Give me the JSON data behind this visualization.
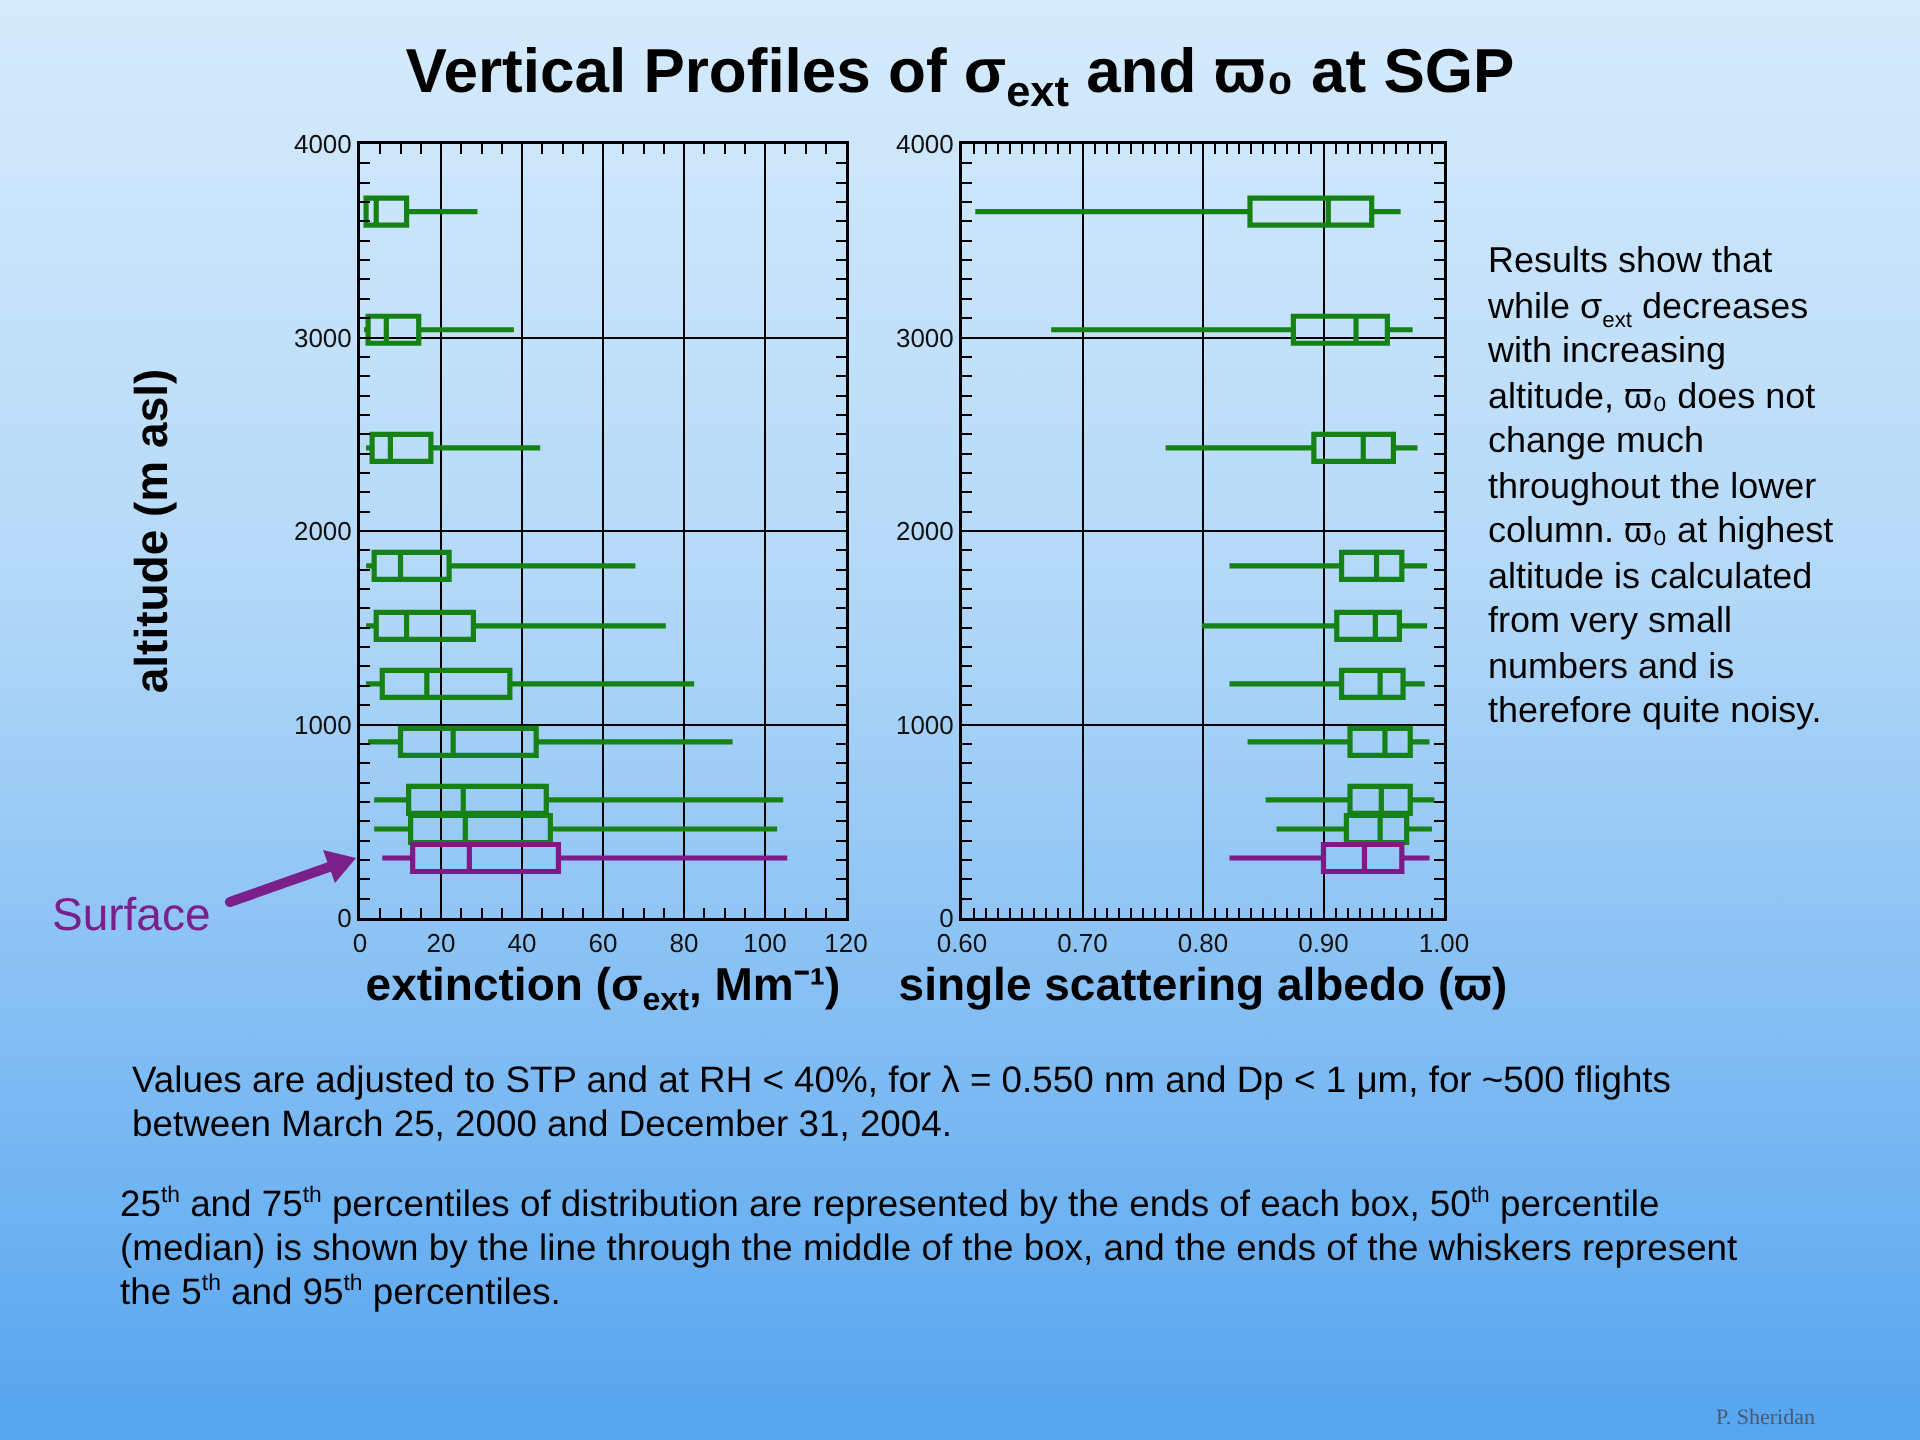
{
  "chart_data": [
    {
      "type": "box",
      "orientation": "horizontal",
      "title": "Vertical Profiles of σ$_{ext}$ and ϖ₀ at SGP",
      "xlabel": "extinction (σ$_{ext}$, Mm⁻¹)",
      "ylabel": "altitude (m asl)",
      "grid": true,
      "xlim": [
        0,
        120
      ],
      "xticks": [
        0,
        {
          "value": 5,
          "label": null
        },
        {
          "value": 10,
          "label": null
        },
        {
          "value": 15,
          "label": null
        },
        20,
        {
          "value": 25,
          "label": null
        },
        {
          "value": 30,
          "label": null
        },
        {
          "value": 35,
          "label": null
        },
        40,
        {
          "value": 45,
          "label": null
        },
        {
          "value": 50,
          "label": null
        },
        {
          "value": 55,
          "label": null
        },
        60,
        {
          "value": 65,
          "label": null
        },
        {
          "value": 70,
          "label": null
        },
        {
          "value": 75,
          "label": null
        },
        80,
        {
          "value": 85,
          "label": null
        },
        {
          "value": 90,
          "label": null
        },
        {
          "value": 95,
          "label": null
        },
        100,
        {
          "value": 105,
          "label": null
        },
        {
          "value": 110,
          "label": null
        },
        {
          "value": 115,
          "label": null
        },
        120
      ],
      "ylim": [
        0,
        4000
      ],
      "yticks": [
        0,
        {
          "value": 100,
          "label": null
        },
        {
          "value": 200,
          "label": null
        },
        {
          "value": 300,
          "label": null
        },
        {
          "value": 400,
          "label": null
        },
        {
          "value": 500,
          "label": null
        },
        {
          "value": 600,
          "label": null
        },
        {
          "value": 700,
          "label": null
        },
        {
          "value": 800,
          "label": null
        },
        {
          "value": 900,
          "label": null
        },
        1000,
        {
          "value": 1100,
          "label": null
        },
        {
          "value": 1200,
          "label": null
        },
        {
          "value": 1300,
          "label": null
        },
        {
          "value": 1400,
          "label": null
        },
        {
          "value": 1500,
          "label": null
        },
        {
          "value": 1600,
          "label": null
        },
        {
          "value": 1700,
          "label": null
        },
        {
          "value": 1800,
          "label": null
        },
        {
          "value": 1900,
          "label": null
        },
        2000,
        {
          "value": 2100,
          "label": null
        },
        {
          "value": 2200,
          "label": null
        },
        {
          "value": 2300,
          "label": null
        },
        {
          "value": 2400,
          "label": null
        },
        {
          "value": 2500,
          "label": null
        },
        {
          "value": 2600,
          "label": null
        },
        {
          "value": 2700,
          "label": null
        },
        {
          "value": 2800,
          "label": null
        },
        {
          "value": 2900,
          "label": null
        },
        3000,
        {
          "value": 3100,
          "label": null
        },
        {
          "value": 3200,
          "label": null
        },
        {
          "value": 3300,
          "label": null
        },
        {
          "value": 3400,
          "label": null
        },
        {
          "value": 3500,
          "label": null
        },
        {
          "value": 3600,
          "label": null
        },
        {
          "value": 3700,
          "label": null
        },
        {
          "value": 3800,
          "label": null
        },
        {
          "value": 3900,
          "label": null
        },
        4000
      ],
      "series": [
        {
          "color": "#168216",
          "x": [
            3650,
            3040,
            2430,
            1820,
            1510,
            1210,
            910,
            610,
            460
          ],
          "boxes": [
            {
              "low": 1,
              "q1": 1.5,
              "median": 4,
              "q3": 11.5,
              "high": 29
            },
            {
              "low": 1,
              "q1": 2,
              "median": 6.5,
              "q3": 14.5,
              "high": 38
            },
            {
              "low": 1.5,
              "q1": 3,
              "median": 7.5,
              "q3": 17.5,
              "high": 44.5
            },
            {
              "low": 1.5,
              "q1": 3.5,
              "median": 10,
              "q3": 22,
              "high": 68
            },
            {
              "low": 1.5,
              "q1": 4,
              "median": 11.5,
              "q3": 28,
              "high": 75.5
            },
            {
              "low": 1.5,
              "q1": 5.5,
              "median": 16.5,
              "q3": 37,
              "high": 82.5
            },
            {
              "low": 2,
              "q1": 10,
              "median": 23,
              "q3": 43.5,
              "high": 92
            },
            {
              "low": 3.5,
              "q1": 12,
              "median": 25.5,
              "q3": 46,
              "high": 104.5
            },
            {
              "low": 3.5,
              "q1": 12.5,
              "median": 26,
              "q3": 47,
              "high": 103
            }
          ]
        },
        {
          "color": "#7d1a88",
          "x": [
            310
          ],
          "boxes": [
            {
              "low": 5.5,
              "q1": 13,
              "median": 27,
              "q3": 49,
              "high": 105.5
            }
          ]
        }
      ],
      "annotations": [
        "Surface",
        "Values are adjusted to STP and at RH < 40%, for λ = 0.550 nm and Dp < 1 μm, for ~500 flights between March 25, 2000 and December 31, 2004.",
        "25$^{th}$ and 75$^{th}$ percentiles of distribution are represented by the ends of each box, 50$^{th}$ percentile (median) is shown by the line through the middle of the box, and the ends of the whiskers represent the 5$^{th}$ and 95$^{th}$ percentiles."
      ]
    },
    {
      "type": "box",
      "orientation": "horizontal",
      "xlabel": "single scattering albedo (ϖ)",
      "grid": true,
      "xlim": [
        0.6,
        1.0
      ],
      "xticks": [
        {
          "value": 0.6,
          "label": "0.60"
        },
        {
          "value": 0.61,
          "label": null
        },
        {
          "value": 0.62,
          "label": null
        },
        {
          "value": 0.63,
          "label": null
        },
        {
          "value": 0.64,
          "label": null
        },
        {
          "value": 0.65,
          "label": null
        },
        {
          "value": 0.66,
          "label": null
        },
        {
          "value": 0.67,
          "label": null
        },
        {
          "value": 0.68,
          "label": null
        },
        {
          "value": 0.69,
          "label": null
        },
        {
          "value": 0.7,
          "label": "0.70"
        },
        {
          "value": 0.71,
          "label": null
        },
        {
          "value": 0.72,
          "label": null
        },
        {
          "value": 0.73,
          "label": null
        },
        {
          "value": 0.74,
          "label": null
        },
        {
          "value": 0.75,
          "label": null
        },
        {
          "value": 0.76,
          "label": null
        },
        {
          "value": 0.77,
          "label": null
        },
        {
          "value": 0.78,
          "label": null
        },
        {
          "value": 0.79,
          "label": null
        },
        {
          "value": 0.8,
          "label": "0.80"
        },
        {
          "value": 0.81,
          "label": null
        },
        {
          "value": 0.82,
          "label": null
        },
        {
          "value": 0.83,
          "label": null
        },
        {
          "value": 0.84,
          "label": null
        },
        {
          "value": 0.85,
          "label": null
        },
        {
          "value": 0.86,
          "label": null
        },
        {
          "value": 0.87,
          "label": null
        },
        {
          "value": 0.88,
          "label": null
        },
        {
          "value": 0.89,
          "label": null
        },
        {
          "value": 0.9,
          "label": "0.90"
        },
        {
          "value": 0.91,
          "label": null
        },
        {
          "value": 0.92,
          "label": null
        },
        {
          "value": 0.93,
          "label": null
        },
        {
          "value": 0.94,
          "label": null
        },
        {
          "value": 0.95,
          "label": null
        },
        {
          "value": 0.96,
          "label": null
        },
        {
          "value": 0.97,
          "label": null
        },
        {
          "value": 0.98,
          "label": null
        },
        {
          "value": 0.99,
          "label": null
        },
        {
          "value": 1.0,
          "label": "1.00"
        }
      ],
      "ylim": [
        0,
        4000
      ],
      "yticks": [
        0,
        {
          "value": 100,
          "label": null
        },
        {
          "value": 200,
          "label": null
        },
        {
          "value": 300,
          "label": null
        },
        {
          "value": 400,
          "label": null
        },
        {
          "value": 500,
          "label": null
        },
        {
          "value": 600,
          "label": null
        },
        {
          "value": 700,
          "label": null
        },
        {
          "value": 800,
          "label": null
        },
        {
          "value": 900,
          "label": null
        },
        1000,
        {
          "value": 1100,
          "label": null
        },
        {
          "value": 1200,
          "label": null
        },
        {
          "value": 1300,
          "label": null
        },
        {
          "value": 1400,
          "label": null
        },
        {
          "value": 1500,
          "label": null
        },
        {
          "value": 1600,
          "label": null
        },
        {
          "value": 1700,
          "label": null
        },
        {
          "value": 1800,
          "label": null
        },
        {
          "value": 1900,
          "label": null
        },
        2000,
        {
          "value": 2100,
          "label": null
        },
        {
          "value": 2200,
          "label": null
        },
        {
          "value": 2300,
          "label": null
        },
        {
          "value": 2400,
          "label": null
        },
        {
          "value": 2500,
          "label": null
        },
        {
          "value": 2600,
          "label": null
        },
        {
          "value": 2700,
          "label": null
        },
        {
          "value": 2800,
          "label": null
        },
        {
          "value": 2900,
          "label": null
        },
        3000,
        {
          "value": 3100,
          "label": null
        },
        {
          "value": 3200,
          "label": null
        },
        {
          "value": 3300,
          "label": null
        },
        {
          "value": 3400,
          "label": null
        },
        {
          "value": 3500,
          "label": null
        },
        {
          "value": 3600,
          "label": null
        },
        {
          "value": 3700,
          "label": null
        },
        {
          "value": 3800,
          "label": null
        },
        {
          "value": 3900,
          "label": null
        },
        4000
      ],
      "series": [
        {
          "color": "#168216",
          "x": [
            3650,
            3040,
            2430,
            1820,
            1510,
            1210,
            910,
            610,
            460
          ],
          "boxes": [
            {
              "low": 0.611,
              "q1": 0.839,
              "median": 0.904,
              "q3": 0.94,
              "high": 0.964
            },
            {
              "low": 0.674,
              "q1": 0.875,
              "median": 0.927,
              "q3": 0.953,
              "high": 0.974
            },
            {
              "low": 0.769,
              "q1": 0.892,
              "median": 0.933,
              "q3": 0.958,
              "high": 0.978
            },
            {
              "low": 0.822,
              "q1": 0.915,
              "median": 0.944,
              "q3": 0.965,
              "high": 0.986
            },
            {
              "low": 0.799,
              "q1": 0.911,
              "median": 0.943,
              "q3": 0.963,
              "high": 0.986
            },
            {
              "low": 0.822,
              "q1": 0.915,
              "median": 0.947,
              "q3": 0.966,
              "high": 0.984
            },
            {
              "low": 0.837,
              "q1": 0.922,
              "median": 0.951,
              "q3": 0.972,
              "high": 0.988
            },
            {
              "low": 0.852,
              "q1": 0.922,
              "median": 0.948,
              "q3": 0.972,
              "high": 0.992
            },
            {
              "low": 0.861,
              "q1": 0.919,
              "median": 0.947,
              "q3": 0.969,
              "high": 0.99
            }
          ]
        },
        {
          "color": "#7d1a88",
          "x": [
            310
          ],
          "boxes": [
            {
              "low": 0.822,
              "q1": 0.9,
              "median": 0.934,
              "q3": 0.965,
              "high": 0.988
            }
          ]
        }
      ],
      "annotations": [
        "Results show that while σ$_{ext}$ decreases with increasing altitude, ϖ₀ does not change much throughout the lower column. ϖ₀ at highest altitude is calculated from very small numbers and is therefore quite noisy.",
        "P. Sheridan"
      ]
    }
  ]
}
